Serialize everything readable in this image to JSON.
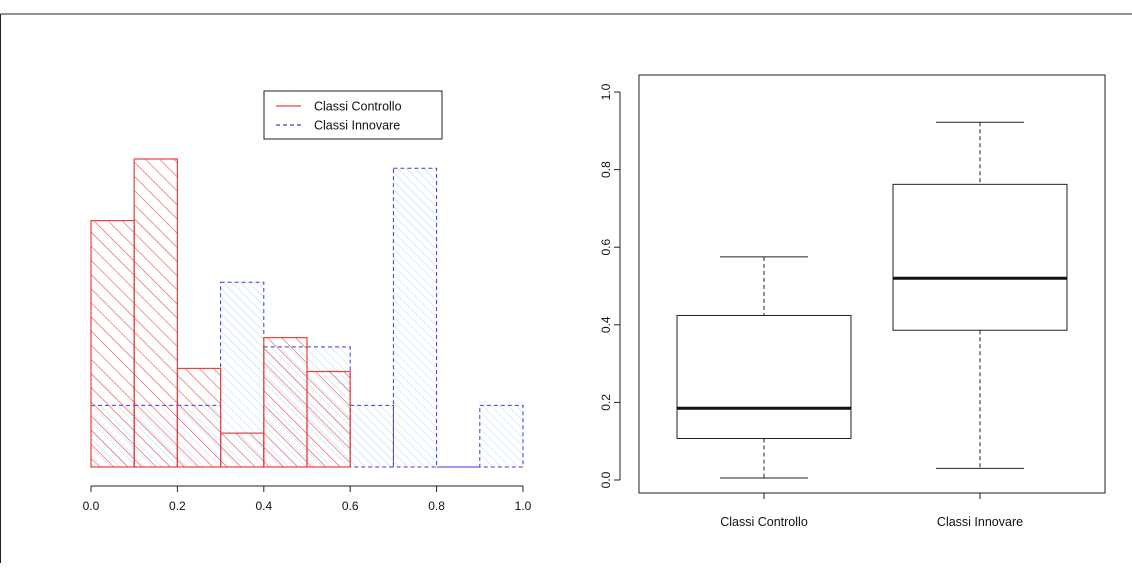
{
  "chart_data": [
    {
      "type": "histogram",
      "title": "",
      "xlabel": "",
      "ylabel": "",
      "xlim": [
        0,
        1
      ],
      "x_ticks": [
        "0.0",
        "0.2",
        "0.4",
        "0.6",
        "0.8",
        "1.0"
      ],
      "bins": [
        0,
        0.1,
        0.2,
        0.3,
        0.4,
        0.5,
        0.6,
        0.7,
        0.8,
        0.9,
        1.0
      ],
      "y_axis_visible": false,
      "legend": {
        "placement": "top-center",
        "entries": [
          {
            "name": "Classi Controllo",
            "color": "#e8413c",
            "line": "solid"
          },
          {
            "name": "Classi Innovare",
            "color": "#3b3bd8",
            "line": "dashed"
          }
        ]
      },
      "series": [
        {
          "name": "Classi Controllo",
          "color": "#e8413c",
          "fill": "hatched",
          "values": [
            4,
            5,
            1.6,
            0.55,
            2.1,
            1.55,
            0,
            0,
            0,
            0
          ]
        },
        {
          "name": "Classi Innovare",
          "color": "#3b3bd8",
          "fill": "light-blue-hatched",
          "values": [
            1,
            1,
            1,
            3,
            1.95,
            1.95,
            1,
            4.85,
            0,
            1
          ]
        }
      ]
    },
    {
      "type": "box",
      "title": "",
      "xlabel": "",
      "ylabel": "",
      "ylim": [
        0,
        1
      ],
      "y_ticks": [
        "0.0",
        "0.2",
        "0.4",
        "0.6",
        "0.8",
        "1.0"
      ],
      "categories": [
        "Classi Controllo",
        "Classi Innovare"
      ],
      "boxes": [
        {
          "min": 0.005,
          "q1": 0.107,
          "median": 0.185,
          "q3": 0.424,
          "max": 0.575
        },
        {
          "min": 0.03,
          "q1": 0.386,
          "median": 0.52,
          "q3": 0.762,
          "max": 0.922
        }
      ]
    }
  ]
}
